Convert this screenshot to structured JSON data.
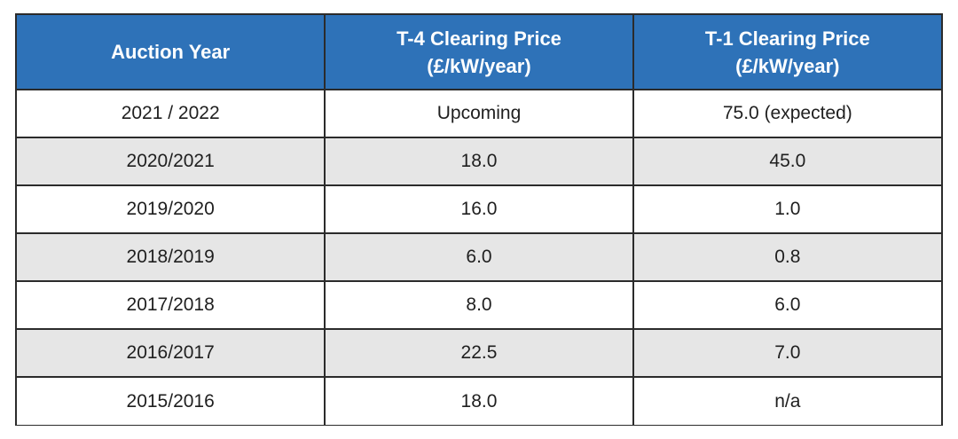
{
  "table": {
    "headers": [
      {
        "line1": "Auction Year",
        "line2": ""
      },
      {
        "line1": "T-4 Clearing Price",
        "line2": "(£/kW/year)"
      },
      {
        "line1": "T-1 Clearing Price",
        "line2": "(£/kW/year)"
      }
    ],
    "rows": [
      {
        "year": "2021 / 2022",
        "t4": "Upcoming",
        "t1": "75.0 (expected)"
      },
      {
        "year": "2020/2021",
        "t4": "18.0",
        "t1": "45.0"
      },
      {
        "year": "2019/2020",
        "t4": "16.0",
        "t1": "1.0"
      },
      {
        "year": "2018/2019",
        "t4": "6.0",
        "t1": "0.8"
      },
      {
        "year": "2017/2018",
        "t4": "8.0",
        "t1": "6.0"
      },
      {
        "year": "2016/2017",
        "t4": "22.5",
        "t1": "7.0"
      },
      {
        "year": "2015/2016",
        "t4": "18.0",
        "t1": "n/a"
      }
    ]
  },
  "colors": {
    "header_bg": "#2e72b8",
    "header_text": "#ffffff",
    "row_shade": "#e6e6e6",
    "border": "#2b2b2b"
  }
}
